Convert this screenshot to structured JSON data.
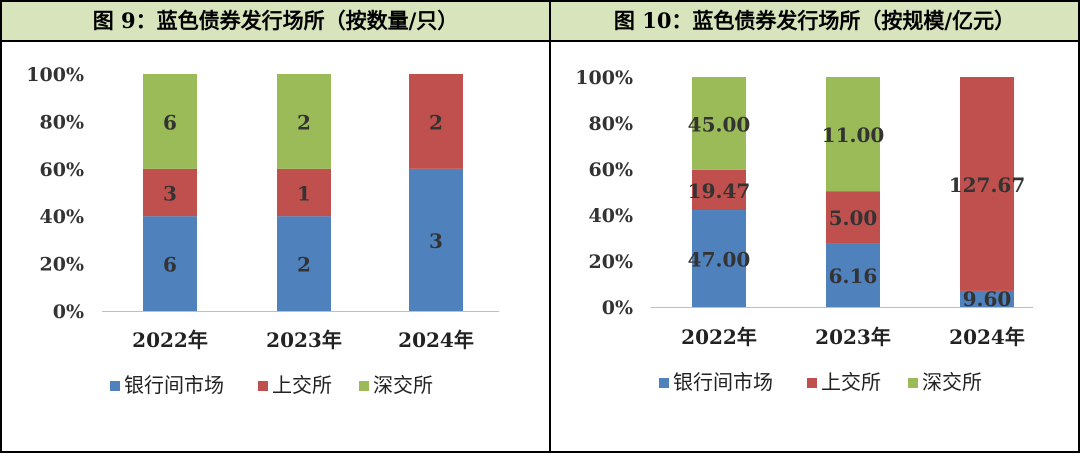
{
  "chart_data": [
    {
      "type": "bar",
      "stacked": "percent",
      "title": "图 9：蓝色债券发行场所（按数量/只）",
      "categories": [
        "2022年",
        "2023年",
        "2024年"
      ],
      "series": [
        {
          "name": "银行间市场",
          "color": "#4f81bd",
          "values": [
            6,
            2,
            3
          ],
          "labels": [
            "6",
            "2",
            "3"
          ]
        },
        {
          "name": "上交所",
          "color": "#c0504d",
          "values": [
            3,
            1,
            2
          ],
          "labels": [
            "3",
            "1",
            "2"
          ]
        },
        {
          "name": "深交所",
          "color": "#9bbb59",
          "values": [
            6,
            2,
            0
          ],
          "labels": [
            "6",
            "2",
            ""
          ]
        }
      ],
      "y_ticks": [
        "0%",
        "20%",
        "40%",
        "60%",
        "80%",
        "100%"
      ],
      "ylim": [
        0,
        100
      ],
      "legend": "bottom"
    },
    {
      "type": "bar",
      "stacked": "percent",
      "title": "图 10：蓝色债券发行场所（按规模/亿元）",
      "categories": [
        "2022年",
        "2023年",
        "2024年"
      ],
      "series": [
        {
          "name": "银行间市场",
          "color": "#4f81bd",
          "values": [
            47.0,
            6.16,
            9.6
          ],
          "labels": [
            "47.00",
            "6.16",
            "9.60"
          ]
        },
        {
          "name": "上交所",
          "color": "#c0504d",
          "values": [
            19.47,
            5.0,
            127.67
          ],
          "labels": [
            "19.47",
            "5.00",
            "127.67"
          ]
        },
        {
          "name": "深交所",
          "color": "#9bbb59",
          "values": [
            45.0,
            11.0,
            0
          ],
          "labels": [
            "45.00",
            "11.00",
            ""
          ]
        }
      ],
      "y_ticks": [
        "0%",
        "20%",
        "40%",
        "60%",
        "80%",
        "100%"
      ],
      "ylim": [
        0,
        100
      ],
      "legend": "bottom"
    }
  ]
}
